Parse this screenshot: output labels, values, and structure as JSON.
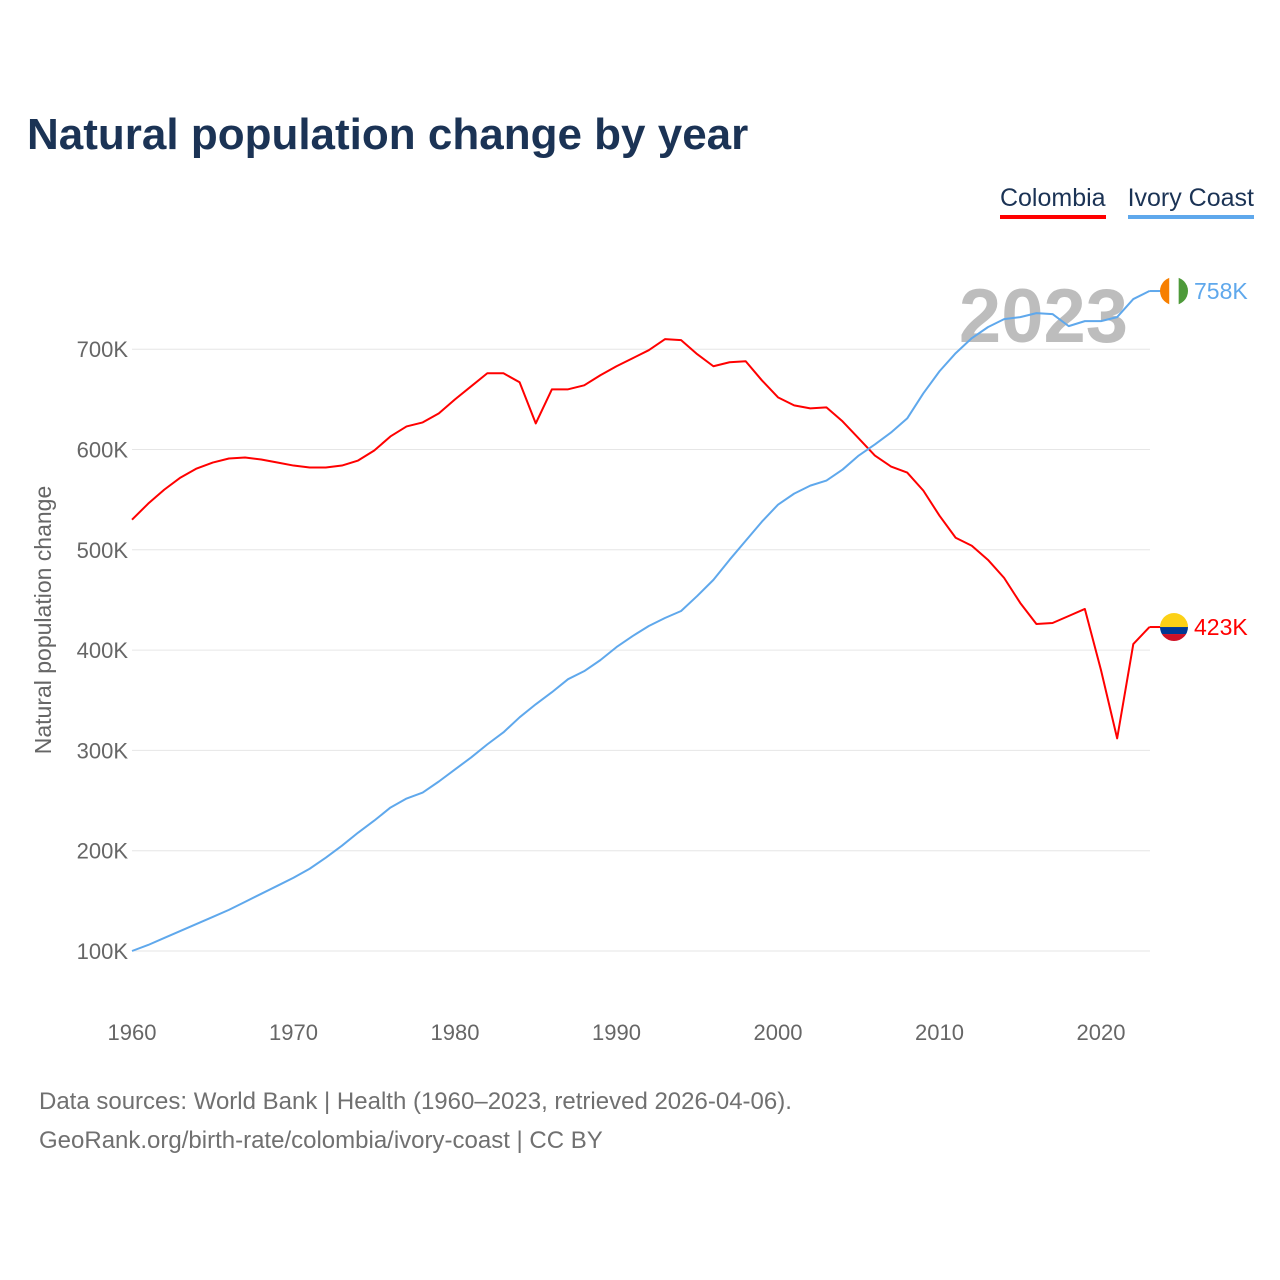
{
  "chart_data": {
    "type": "line",
    "title": "Natural population change by year",
    "xlabel": "",
    "ylabel": "Natural population change",
    "xlim": [
      1960,
      2023
    ],
    "ylim": [
      100000,
      700000
    ],
    "x_ticks": [
      "1960",
      "1970",
      "1980",
      "1990",
      "2000",
      "2010",
      "2020"
    ],
    "y_ticks": [
      "100K",
      "200K",
      "300K",
      "400K",
      "500K",
      "600K",
      "700K"
    ],
    "grid": true,
    "legend_position": "top-right",
    "year_label": "2023",
    "x": [
      1960,
      1961,
      1962,
      1963,
      1964,
      1965,
      1966,
      1967,
      1968,
      1969,
      1970,
      1971,
      1972,
      1973,
      1974,
      1975,
      1976,
      1977,
      1978,
      1979,
      1980,
      1981,
      1982,
      1983,
      1984,
      1985,
      1986,
      1987,
      1988,
      1989,
      1990,
      1991,
      1992,
      1993,
      1994,
      1995,
      1996,
      1997,
      1998,
      1999,
      2000,
      2001,
      2002,
      2003,
      2004,
      2005,
      2006,
      2007,
      2008,
      2009,
      2010,
      2011,
      2012,
      2013,
      2014,
      2015,
      2016,
      2017,
      2018,
      2019,
      2020,
      2021,
      2022,
      2023
    ],
    "series": [
      {
        "name": "Colombia",
        "color": "#ff0000",
        "end_label": "423K",
        "values": [
          530,
          546,
          560,
          572,
          581,
          587,
          591,
          592,
          590,
          587,
          584,
          582,
          582,
          584,
          589,
          599,
          613,
          623,
          627,
          636,
          650,
          663,
          676,
          676,
          667,
          626,
          660,
          660,
          664,
          674,
          683,
          691,
          699,
          710,
          709,
          695,
          683,
          687,
          688,
          669,
          652,
          644,
          641,
          642,
          628,
          611,
          594,
          583,
          577,
          559,
          534,
          512,
          504,
          490,
          472,
          447,
          426,
          427,
          434,
          441,
          380,
          312,
          406,
          423
        ],
        "unit": "thousands"
      },
      {
        "name": "Ivory Coast",
        "color": "#5fa8ec",
        "end_label": "758K",
        "values": [
          100,
          106,
          113,
          120,
          127,
          134,
          141,
          149,
          157,
          165,
          173,
          182,
          193,
          205,
          218,
          230,
          243,
          252,
          258,
          269,
          281,
          293,
          306,
          318,
          333,
          346,
          358,
          371,
          379,
          390,
          403,
          414,
          424,
          432,
          439,
          454,
          470,
          490,
          509,
          528,
          545,
          556,
          564,
          569,
          580,
          594,
          605,
          617,
          631,
          656,
          678,
          696,
          711,
          722,
          730,
          732,
          736,
          735,
          723,
          728,
          728,
          732,
          750,
          758
        ],
        "unit": "thousands"
      }
    ]
  },
  "footer": {
    "line1": "Data sources: World Bank | Health (1960–2023, retrieved 2026-04-06).",
    "line2": "GeoRank.org/birth-rate/colombia/ivory-coast | CC BY"
  }
}
